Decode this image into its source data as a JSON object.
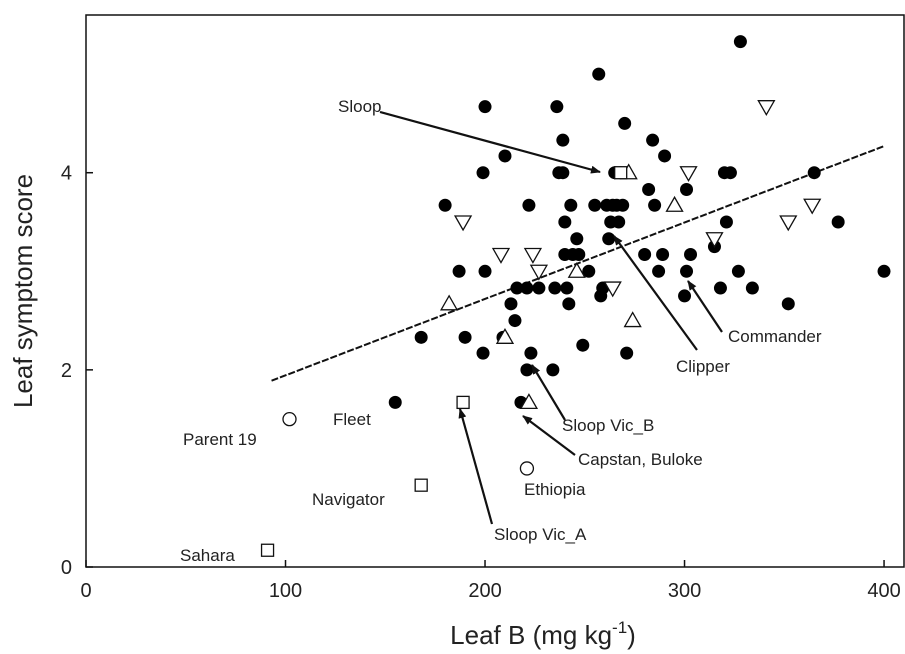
{
  "chart_data": {
    "type": "scatter",
    "xlabel": "Leaf B (mg kg",
    "xlabel_sup": "-1",
    "xlabel_end": ")",
    "ylabel": "Leaf symptom score",
    "xlim": [
      0,
      410
    ],
    "ylim": [
      0,
      5.6
    ],
    "x_ticks": [
      0,
      100,
      200,
      300,
      400
    ],
    "y_ticks": [
      0,
      2,
      4
    ],
    "grid": false,
    "series": [
      {
        "marker": "filled-circle",
        "points": [
          [
            155,
            1.67
          ],
          [
            168,
            2.33
          ],
          [
            180,
            3.67
          ],
          [
            187,
            3.0
          ],
          [
            190,
            2.33
          ],
          [
            199,
            2.17
          ],
          [
            199,
            4.0
          ],
          [
            200,
            4.67
          ],
          [
            200,
            3.0
          ],
          [
            209,
            2.33
          ],
          [
            210,
            4.17
          ],
          [
            213,
            2.67
          ],
          [
            215,
            2.5
          ],
          [
            216,
            2.83
          ],
          [
            218,
            1.67
          ],
          [
            221,
            2.0
          ],
          [
            221,
            2.83
          ],
          [
            222,
            3.67
          ],
          [
            223,
            2.17
          ],
          [
            227,
            2.83
          ],
          [
            234,
            2.0
          ],
          [
            235,
            2.83
          ],
          [
            236,
            4.67
          ],
          [
            237,
            4.0
          ],
          [
            239,
            4.0
          ],
          [
            239,
            4.33
          ],
          [
            240,
            3.5
          ],
          [
            240,
            3.17
          ],
          [
            241,
            2.83
          ],
          [
            242,
            2.67
          ],
          [
            243,
            3.67
          ],
          [
            244,
            3.17
          ],
          [
            246,
            3.33
          ],
          [
            247,
            3.17
          ],
          [
            249,
            2.25
          ],
          [
            252,
            3.0
          ],
          [
            255,
            3.67
          ],
          [
            257,
            5.0
          ],
          [
            258,
            2.75
          ],
          [
            259,
            2.83
          ],
          [
            261,
            3.67
          ],
          [
            262,
            3.33
          ],
          [
            263,
            3.5
          ],
          [
            264,
            3.67
          ],
          [
            265,
            4.0
          ],
          [
            266,
            3.67
          ],
          [
            267,
            3.5
          ],
          [
            268,
            4.0
          ],
          [
            269,
            3.67
          ],
          [
            270,
            4.5
          ],
          [
            271,
            2.17
          ],
          [
            280,
            3.17
          ],
          [
            282,
            3.83
          ],
          [
            284,
            4.33
          ],
          [
            285,
            3.67
          ],
          [
            287,
            3.0
          ],
          [
            289,
            3.17
          ],
          [
            290,
            4.17
          ],
          [
            300,
            2.75
          ],
          [
            301,
            3.0
          ],
          [
            301,
            3.83
          ],
          [
            303,
            3.17
          ],
          [
            315,
            3.25
          ],
          [
            318,
            2.83
          ],
          [
            320,
            4.0
          ],
          [
            321,
            3.5
          ],
          [
            323,
            4.0
          ],
          [
            327,
            3.0
          ],
          [
            328,
            5.33
          ],
          [
            334,
            2.83
          ],
          [
            352,
            2.67
          ],
          [
            365,
            4.0
          ],
          [
            377,
            3.5
          ],
          [
            400,
            3.0
          ]
        ]
      },
      {
        "marker": "open-triangle-down",
        "points": [
          [
            189,
            3.5
          ],
          [
            208,
            3.17
          ],
          [
            224,
            3.17
          ],
          [
            227,
            3.0
          ],
          [
            264,
            2.83
          ],
          [
            302,
            4.0
          ],
          [
            315,
            3.33
          ],
          [
            341,
            4.67
          ],
          [
            352,
            3.5
          ],
          [
            364,
            3.67
          ]
        ]
      },
      {
        "marker": "open-triangle-up",
        "points": [
          [
            182,
            2.67
          ],
          [
            210,
            2.33
          ],
          [
            222,
            1.67
          ],
          [
            246,
            3.0
          ],
          [
            272,
            4.0
          ],
          [
            274,
            2.5
          ],
          [
            295,
            3.67
          ]
        ]
      },
      {
        "marker": "open-circle",
        "points": [
          [
            102,
            1.5
          ],
          [
            221,
            1.0
          ]
        ]
      },
      {
        "marker": "open-square",
        "points": [
          [
            91,
            0.17
          ],
          [
            168,
            0.83
          ],
          [
            189,
            1.67
          ],
          [
            268,
            4.0
          ]
        ]
      }
    ],
    "trendline": {
      "style": "dashed",
      "x": [
        93,
        400
      ],
      "y": [
        1.89,
        4.27
      ]
    },
    "annotations": [
      {
        "text": "Sloop",
        "pos": [
          330,
          4.65
        ]
      },
      {
        "text": "Clipper",
        "pos": [
          350,
          2.05
        ]
      },
      {
        "text": "Commander",
        "pos": [
          470,
          2.33
        ]
      },
      {
        "text": "Fleet",
        "pos": [
          235,
          1.49
        ]
      },
      {
        "text": "Parent 19",
        "pos": [
          135,
          1.28
        ]
      },
      {
        "text": "Navigator",
        "pos": [
          115,
          0.68
        ]
      },
      {
        "text": "Sahara",
        "pos": [
          70,
          0.08
        ]
      },
      {
        "text": "Ethiopia",
        "pos": [
          286,
          0.76
        ]
      },
      {
        "text": "Sloop Vic_A",
        "pos": [
          392,
          0.33
        ]
      },
      {
        "text": "Sloop Vic_B",
        "pos": [
          486,
          1.43
        ]
      },
      {
        "text": "Capstan, Buloke",
        "pos": [
          488,
          1.06
        ]
      }
    ]
  }
}
